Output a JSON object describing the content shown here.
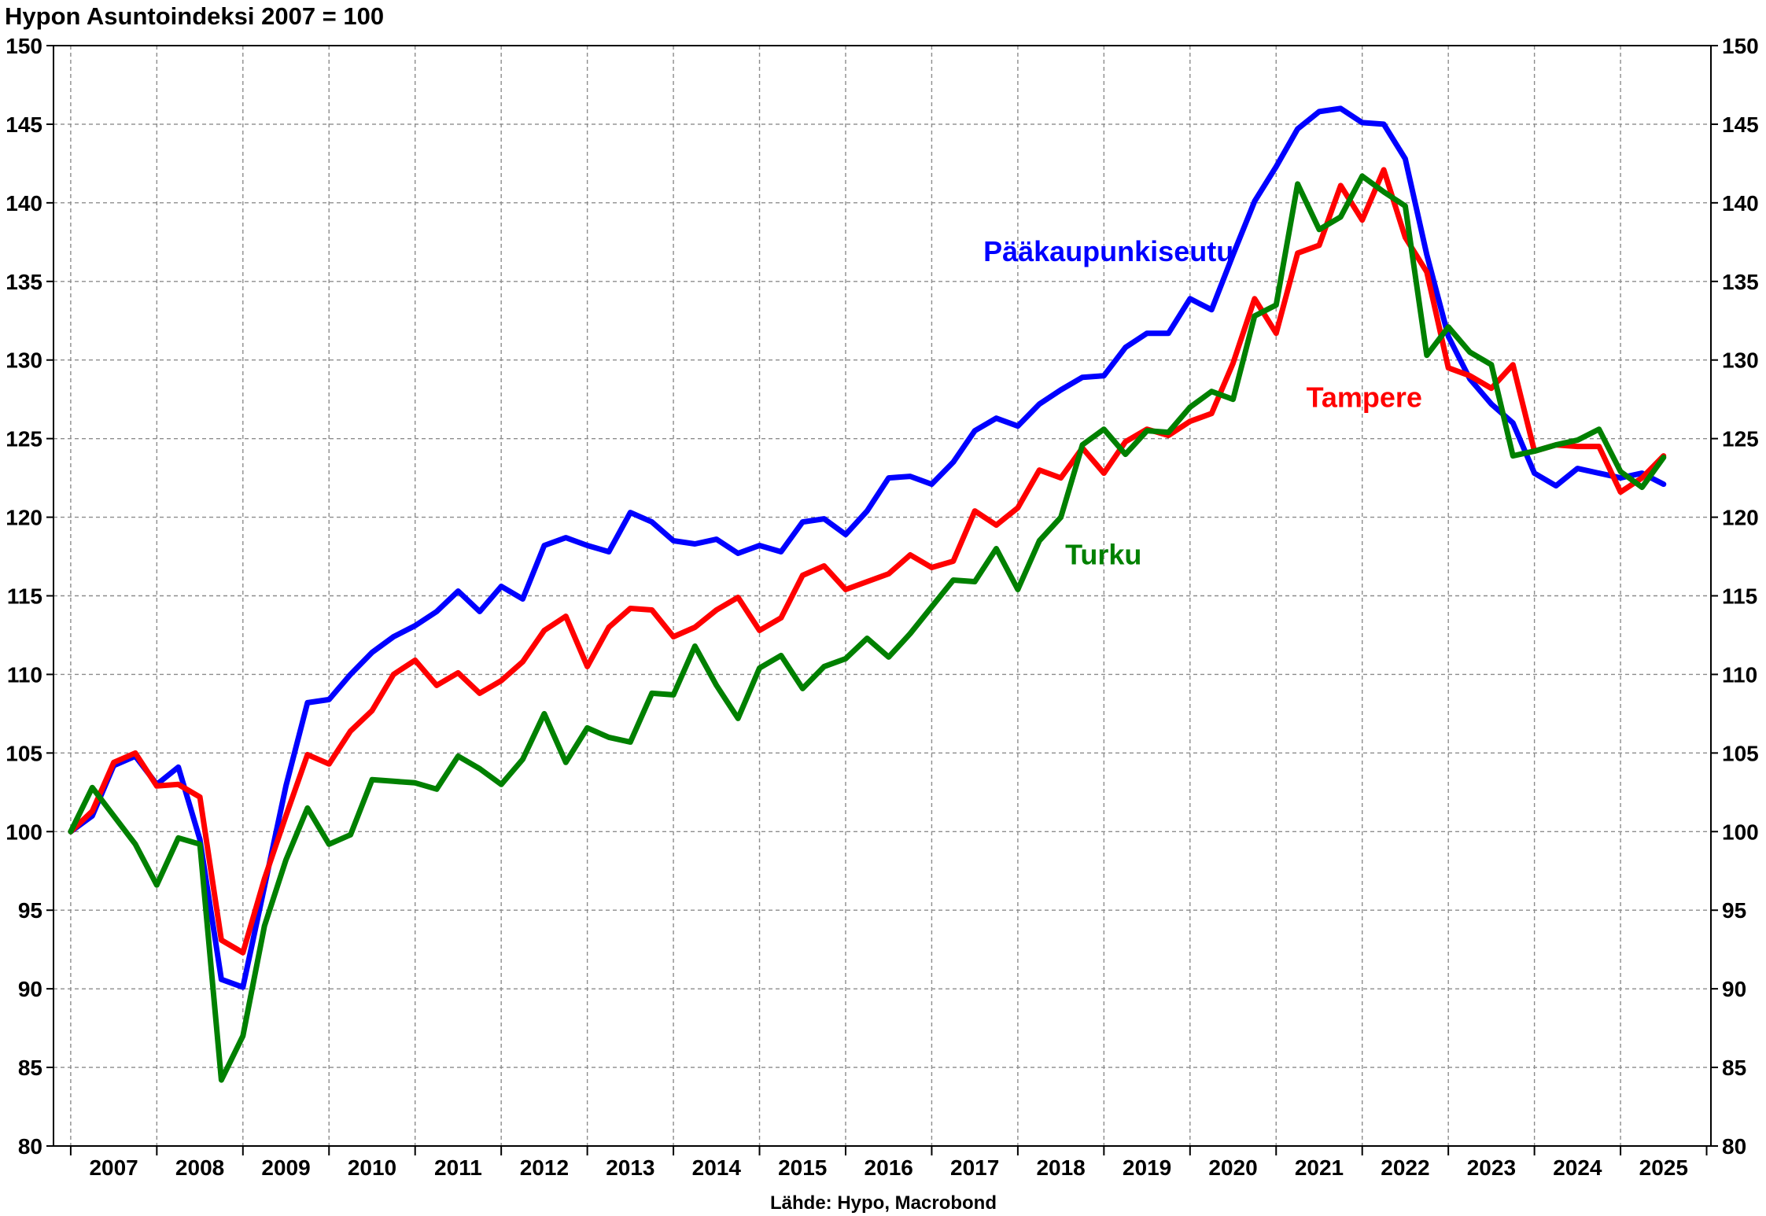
{
  "chart_data": {
    "type": "line",
    "title": "Hypon Asuntoindeksi 2007 = 100",
    "source": "Lähde: Hypo, Macrobond",
    "ylim": [
      80,
      150
    ],
    "y_ticks": [
      80,
      85,
      90,
      95,
      100,
      105,
      110,
      115,
      120,
      125,
      130,
      135,
      140,
      145,
      150
    ],
    "x_range": [
      2006.8,
      2026.05
    ],
    "x_ticks": [
      "2007",
      "2008",
      "2009",
      "2010",
      "2011",
      "2012",
      "2013",
      "2014",
      "2015",
      "2016",
      "2017",
      "2018",
      "2019",
      "2020",
      "2021",
      "2022",
      "2023",
      "2024",
      "2025"
    ],
    "grid": true,
    "dual_y_axis": true,
    "series": [
      {
        "name": "Pääkaupunkiseutu",
        "color": "#0000ff",
        "label_position": "middle-upper",
        "start": 2007.0,
        "step": 0.25,
        "values": [
          100,
          101,
          104.2,
          104.8,
          103,
          104.1,
          99.5,
          90.6,
          90.1,
          96.5,
          102.9,
          108.2,
          108.4,
          110,
          111.4,
          112.4,
          113.1,
          114,
          115.3,
          114,
          115.6,
          114.8,
          118.2,
          118.7,
          118.2,
          117.8,
          120.3,
          119.7,
          118.5,
          118.3,
          118.6,
          117.7,
          118.2,
          117.8,
          119.7,
          119.9,
          118.9,
          120.4,
          122.5,
          122.6,
          122.1,
          123.5,
          125.5,
          126.3,
          125.8,
          127.2,
          128.1,
          128.9,
          129,
          130.8,
          131.7,
          131.7,
          133.9,
          133.2,
          136.7,
          140.1,
          142.3,
          144.7,
          145.8,
          146,
          145.1,
          145,
          142.8,
          136.7,
          131.5,
          128.8,
          127.2,
          126,
          122.8,
          122,
          123.1,
          122.8,
          122.5,
          122.8,
          122.1
        ]
      },
      {
        "name": "Tampere",
        "color": "#ff0000",
        "label_position": "right-middle",
        "start": 2007.0,
        "step": 0.25,
        "values": [
          100,
          101.3,
          104.4,
          105,
          102.9,
          103,
          102.2,
          93.1,
          92.3,
          97,
          101,
          104.9,
          104.3,
          106.4,
          107.7,
          110,
          110.9,
          109.3,
          110.1,
          108.8,
          109.6,
          110.8,
          112.8,
          113.7,
          110.5,
          113,
          114.2,
          114.1,
          112.4,
          113,
          114.1,
          114.9,
          112.8,
          113.6,
          116.3,
          116.9,
          115.4,
          115.9,
          116.4,
          117.6,
          116.8,
          117.2,
          120.4,
          119.5,
          120.6,
          123,
          122.5,
          124.4,
          122.8,
          124.8,
          125.6,
          125.2,
          126.1,
          126.6,
          129.8,
          133.9,
          131.7,
          136.8,
          137.3,
          141.1,
          138.9,
          142.1,
          137.8,
          135.6,
          129.5,
          129,
          128.2,
          129.7,
          124.2,
          124.6,
          124.5,
          124.5,
          121.6,
          122.5,
          123.9
        ]
      },
      {
        "name": "Turku",
        "color": "#008000",
        "label_position": "middle-center",
        "start": 2007.0,
        "step": 0.25,
        "values": [
          100,
          102.8,
          101,
          99.2,
          96.6,
          99.6,
          99.2,
          84.2,
          87,
          94,
          98.2,
          101.5,
          99.2,
          99.8,
          103.3,
          103.2,
          103.1,
          102.7,
          104.8,
          104,
          103,
          104.6,
          107.5,
          104.4,
          106.6,
          106,
          105.7,
          108.8,
          108.7,
          111.8,
          109.3,
          107.2,
          110.4,
          111.2,
          109.1,
          110.5,
          111,
          112.3,
          111.1,
          112.6,
          114.3,
          116,
          115.9,
          118,
          115.4,
          118.5,
          120,
          124.6,
          125.6,
          124,
          125.5,
          125.4,
          127,
          128,
          127.5,
          132.8,
          133.5,
          141.2,
          138.3,
          139.1,
          141.7,
          140.7,
          139.8,
          130.3,
          132.1,
          130.5,
          129.7,
          123.9,
          124.2,
          124.6,
          124.9,
          125.6,
          122.9,
          121.9,
          123.8
        ]
      }
    ]
  }
}
